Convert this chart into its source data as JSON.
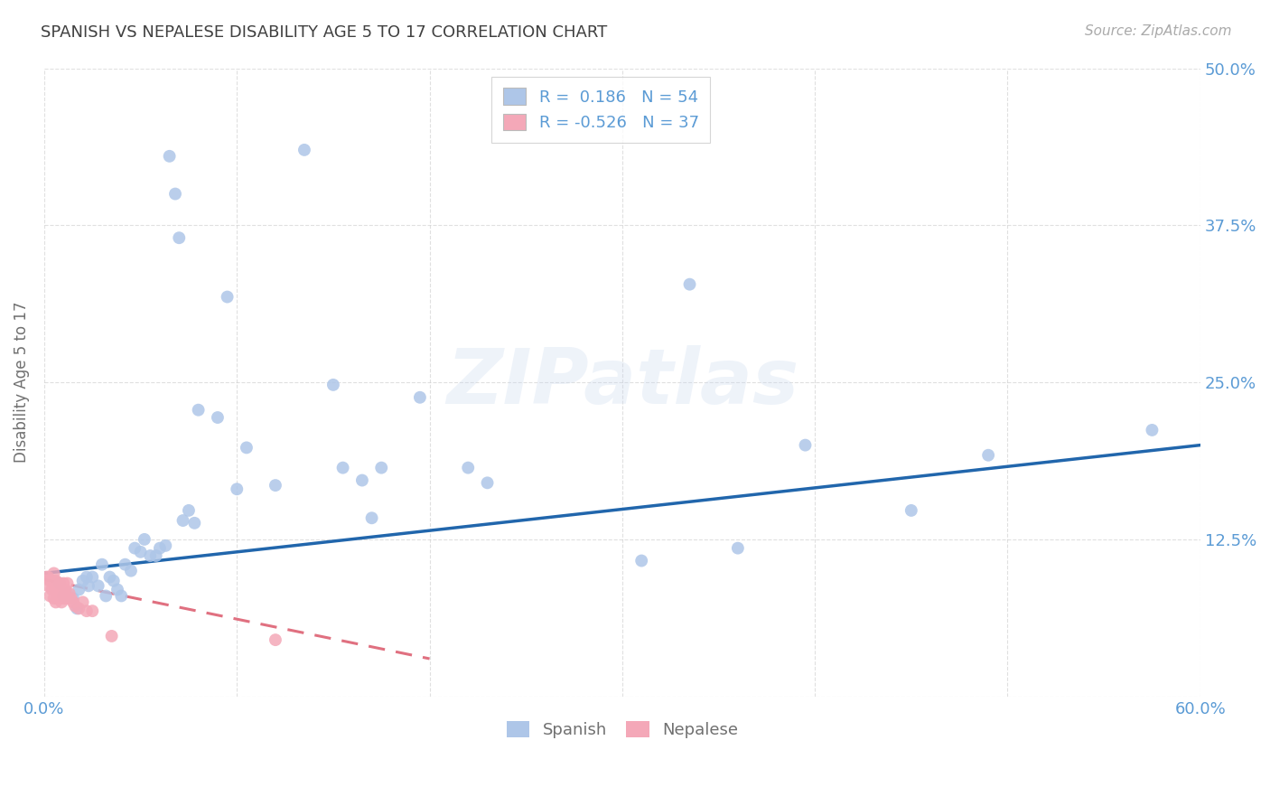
{
  "title": "SPANISH VS NEPALESE DISABILITY AGE 5 TO 17 CORRELATION CHART",
  "source": "Source: ZipAtlas.com",
  "ylabel": "Disability Age 5 to 17",
  "xlim": [
    0.0,
    0.6
  ],
  "ylim": [
    0.0,
    0.5
  ],
  "spanish_color": "#aec6e8",
  "nepalese_color": "#f4a8b8",
  "trend_spanish_color": "#2166ac",
  "trend_nepalese_color": "#e07080",
  "background_color": "#ffffff",
  "grid_color": "#cccccc",
  "title_color": "#404040",
  "axis_label_color": "#707070",
  "tick_label_color": "#5b9bd5",
  "watermark": "ZIPatlas",
  "R_spanish": 0.186,
  "N_spanish": 54,
  "R_nepalese": -0.526,
  "N_nepalese": 37,
  "spanish_x": [
    0.008,
    0.01,
    0.012,
    0.015,
    0.017,
    0.018,
    0.02,
    0.022,
    0.023,
    0.025,
    0.028,
    0.03,
    0.032,
    0.034,
    0.036,
    0.038,
    0.04,
    0.042,
    0.045,
    0.047,
    0.05,
    0.052,
    0.055,
    0.058,
    0.06,
    0.063,
    0.065,
    0.068,
    0.07,
    0.072,
    0.075,
    0.078,
    0.08,
    0.09,
    0.095,
    0.1,
    0.105,
    0.12,
    0.135,
    0.15,
    0.155,
    0.165,
    0.17,
    0.175,
    0.195,
    0.22,
    0.23,
    0.31,
    0.335,
    0.36,
    0.395,
    0.45,
    0.49,
    0.575
  ],
  "spanish_y": [
    0.09,
    0.08,
    0.082,
    0.078,
    0.07,
    0.085,
    0.092,
    0.095,
    0.088,
    0.095,
    0.088,
    0.105,
    0.08,
    0.095,
    0.092,
    0.085,
    0.08,
    0.105,
    0.1,
    0.118,
    0.115,
    0.125,
    0.112,
    0.112,
    0.118,
    0.12,
    0.43,
    0.4,
    0.365,
    0.14,
    0.148,
    0.138,
    0.228,
    0.222,
    0.318,
    0.165,
    0.198,
    0.168,
    0.435,
    0.248,
    0.182,
    0.172,
    0.142,
    0.182,
    0.238,
    0.182,
    0.17,
    0.108,
    0.328,
    0.118,
    0.2,
    0.148,
    0.192,
    0.212
  ],
  "nepalese_x": [
    0.001,
    0.002,
    0.002,
    0.003,
    0.003,
    0.004,
    0.004,
    0.005,
    0.005,
    0.005,
    0.006,
    0.006,
    0.006,
    0.007,
    0.007,
    0.007,
    0.008,
    0.008,
    0.009,
    0.009,
    0.009,
    0.01,
    0.01,
    0.011,
    0.011,
    0.012,
    0.012,
    0.013,
    0.014,
    0.015,
    0.016,
    0.018,
    0.02,
    0.022,
    0.025,
    0.035,
    0.12
  ],
  "nepalese_y": [
    0.095,
    0.088,
    0.095,
    0.08,
    0.092,
    0.085,
    0.092,
    0.078,
    0.09,
    0.098,
    0.085,
    0.092,
    0.075,
    0.082,
    0.09,
    0.078,
    0.085,
    0.09,
    0.078,
    0.085,
    0.075,
    0.082,
    0.09,
    0.078,
    0.085,
    0.09,
    0.078,
    0.082,
    0.078,
    0.075,
    0.072,
    0.07,
    0.075,
    0.068,
    0.068,
    0.048,
    0.045
  ],
  "trend_sp_x0": 0.0,
  "trend_sp_y0": 0.098,
  "trend_sp_x1": 0.6,
  "trend_sp_y1": 0.2,
  "trend_ne_x0": 0.0,
  "trend_ne_y0": 0.093,
  "trend_ne_x1": 0.2,
  "trend_ne_y1": 0.03
}
